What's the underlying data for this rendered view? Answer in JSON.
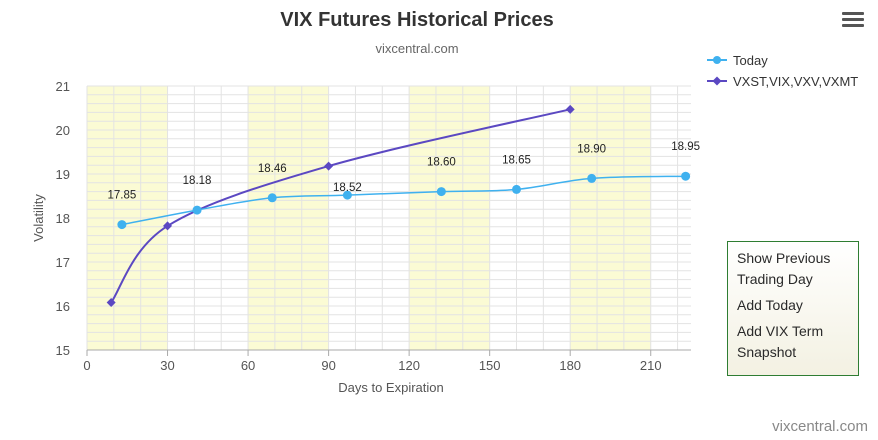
{
  "chart_data": {
    "type": "line",
    "title": "VIX Futures Historical Prices",
    "subtitle": "vixcentral.com",
    "xlabel": "Days to Expiration",
    "ylabel": "Volatility",
    "xlim": [
      0,
      225
    ],
    "ylim": [
      15,
      21
    ],
    "x_ticks": [
      0,
      30,
      60,
      90,
      120,
      150,
      180,
      210
    ],
    "y_ticks": [
      15,
      16,
      17,
      18,
      19,
      20,
      21
    ],
    "legend_position": "top-right",
    "shaded_bands": [
      [
        0,
        30
      ],
      [
        60,
        90
      ],
      [
        120,
        150
      ],
      [
        180,
        210
      ]
    ],
    "series": [
      {
        "name": "Today",
        "color": "#3fb1ef",
        "marker": "circle",
        "points": [
          {
            "x": 13,
            "y": 17.85,
            "label": "17.85"
          },
          {
            "x": 41,
            "y": 18.18,
            "label": "18.18"
          },
          {
            "x": 69,
            "y": 18.46,
            "label": "18.46"
          },
          {
            "x": 97,
            "y": 18.52,
            "label": "18.52"
          },
          {
            "x": 132,
            "y": 18.6,
            "label": "18.60"
          },
          {
            "x": 160,
            "y": 18.65,
            "label": "18.65"
          },
          {
            "x": 188,
            "y": 18.9,
            "label": "18.90"
          },
          {
            "x": 223,
            "y": 18.95,
            "label": "18.95"
          }
        ]
      },
      {
        "name": "VXST,VIX,VXV,VXMT",
        "color": "#5b48c2",
        "marker": "diamond",
        "points": [
          {
            "x": 9,
            "y": 16.08
          },
          {
            "x": 30,
            "y": 17.82
          },
          {
            "x": 90,
            "y": 19.18
          },
          {
            "x": 180,
            "y": 20.47
          }
        ]
      }
    ]
  },
  "menu": {
    "icon": "hamburger-menu-icon",
    "items": [
      "Show Previous",
      "Trading Day",
      "Add Today",
      "Add VIX Term",
      "Snapshot"
    ]
  },
  "credit": "vixcentral.com",
  "colors": {
    "band": "#fbfbd4",
    "grid": "#e3e3e3",
    "panel_border": "#2e7d32"
  }
}
